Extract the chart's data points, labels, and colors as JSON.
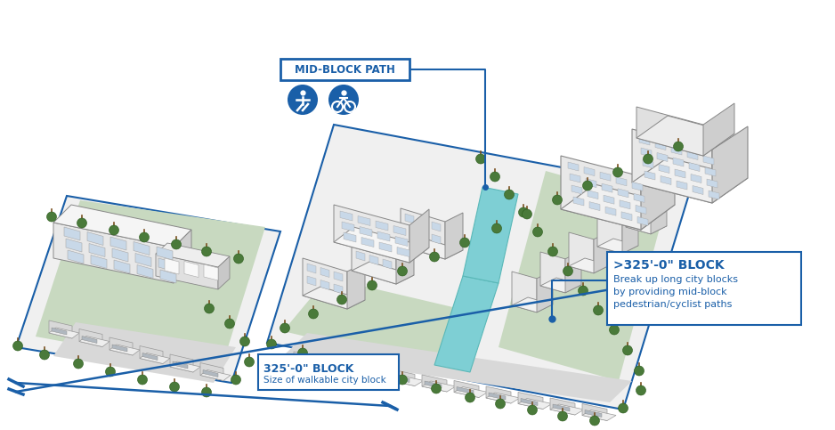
{
  "bg_color": "#ffffff",
  "blue": "#1a5fa8",
  "cyan": "#7ecfd4",
  "green": "#c8d9c0",
  "gray_light": "#e8e8e8",
  "gray_med": "#d0d0d0",
  "gray_dark": "#a0a0a0",
  "tree_green": "#4a7a3a",
  "white": "#ffffff",
  "label_325_title": "325'-0\" BLOCK",
  "label_325_sub": "Size of walkable city block",
  "label_long_title": ">325'-0\" BLOCK",
  "label_long_line1": "Break up long city blocks",
  "label_long_line2": "by providing mid-block",
  "label_long_line3": "pedestrian/cyclist paths",
  "mid_block_label": "MID-BLOCK PATH"
}
